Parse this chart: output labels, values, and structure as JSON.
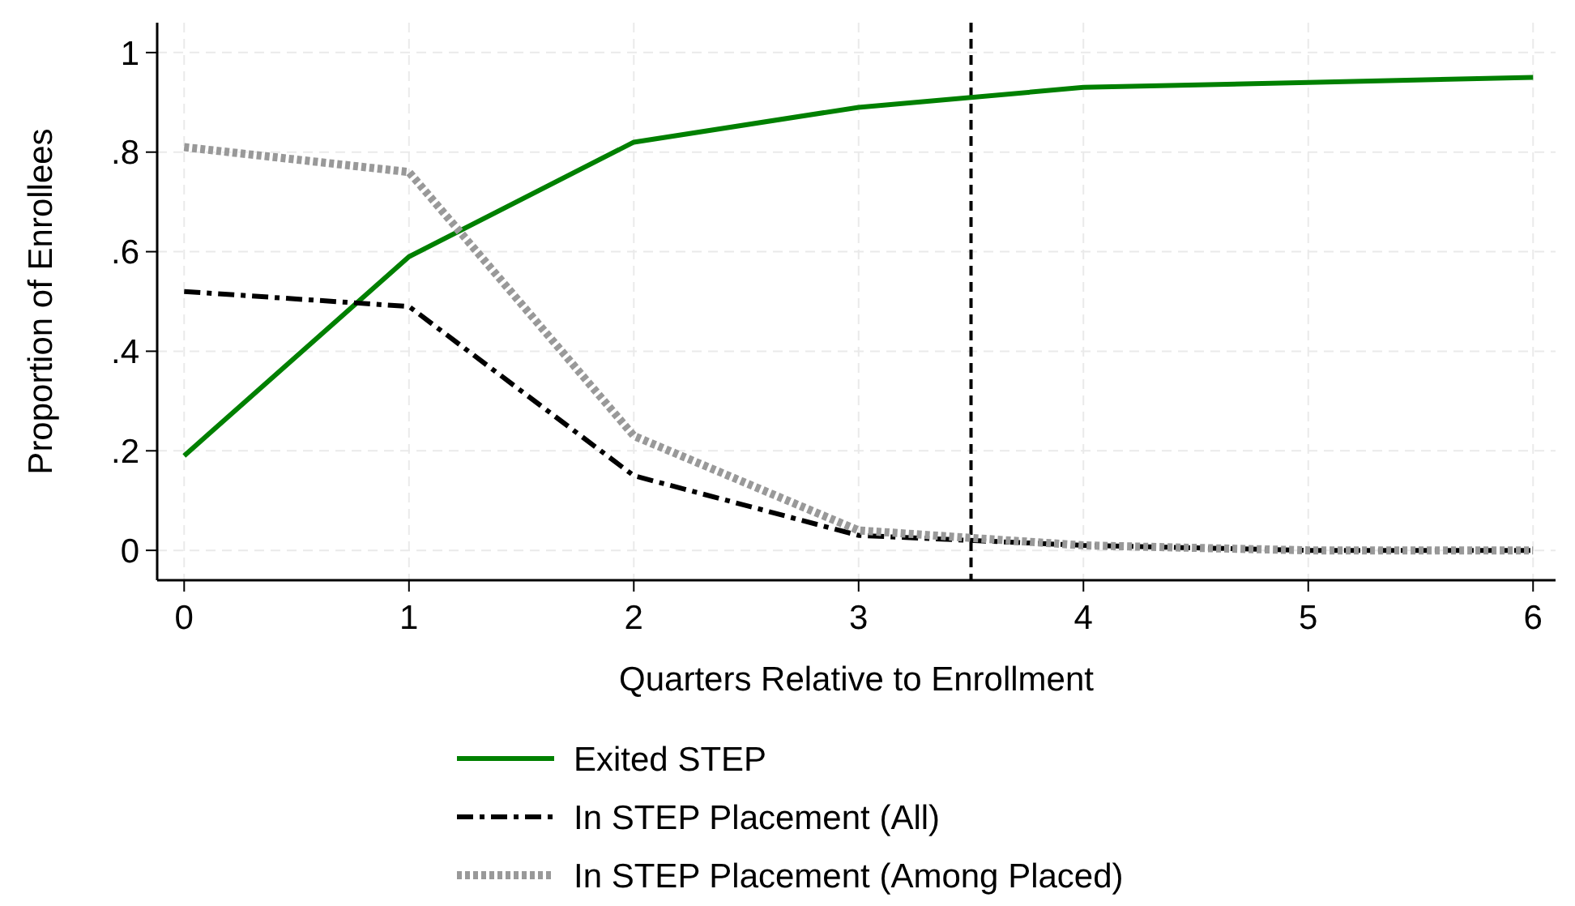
{
  "chart_data": {
    "type": "line",
    "xlabel": "Quarters Relative to Enrollment",
    "ylabel": "Proportion of Enrollees",
    "x": [
      0,
      1,
      2,
      3,
      4,
      5,
      6
    ],
    "series": [
      {
        "name": "Exited STEP",
        "color": "#008000",
        "line_style": "solid",
        "values": [
          0.19,
          0.59,
          0.82,
          0.89,
          0.93,
          0.94,
          0.95
        ]
      },
      {
        "name": "In STEP Placement (All)",
        "color": "#000000",
        "line_style": "dashed",
        "values": [
          0.52,
          0.49,
          0.15,
          0.03,
          0.01,
          0.0,
          0.0
        ]
      },
      {
        "name": "In STEP Placement (Among Placed)",
        "color": "#999999",
        "line_style": "dotted",
        "values": [
          0.81,
          0.76,
          0.23,
          0.04,
          0.01,
          0.0,
          0.0
        ]
      }
    ],
    "xlim": [
      -0.12,
      6.1
    ],
    "ylim": [
      -0.06,
      1.06
    ],
    "xticks": [
      0,
      1,
      2,
      3,
      4,
      5,
      6
    ],
    "yticks": [
      0,
      {
        "value": 0.2,
        "label": ".2"
      },
      {
        "value": 0.4,
        "label": ".4"
      },
      {
        "value": 0.6,
        "label": ".6"
      },
      {
        "value": 0.8,
        "label": ".8"
      },
      1
    ],
    "ref_lines": [
      {
        "axis": "x",
        "value": 3.5,
        "color": "#000000",
        "line_style": "dashed"
      }
    ],
    "grid": true,
    "legend": "bottom"
  }
}
